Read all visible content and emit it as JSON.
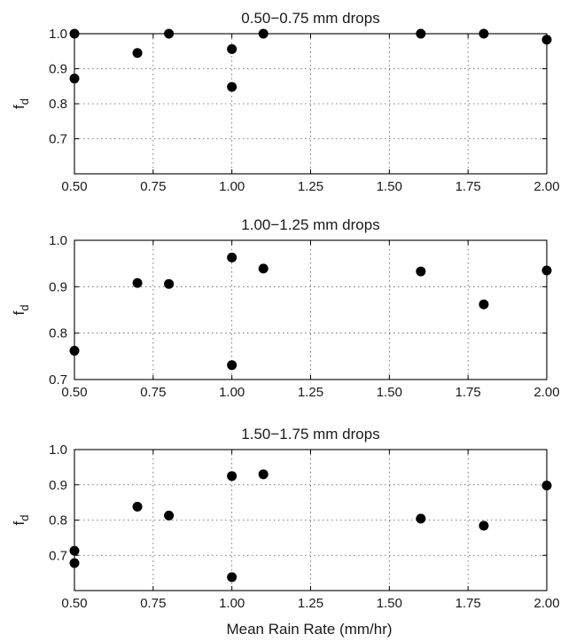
{
  "chart_data": [
    {
      "type": "scatter",
      "title": "0.50−0.75 mm drops",
      "ylabel": "f",
      "ylabel_sub": "d",
      "xlim": [
        0.5,
        2.0
      ],
      "ylim": [
        0.6,
        1.0
      ],
      "xticks": [
        0.5,
        0.75,
        1.0,
        1.25,
        1.5,
        1.75,
        2.0
      ],
      "xtick_labels": [
        "0.50",
        "0.75",
        "1.00",
        "1.25",
        "1.50",
        "1.75",
        "2.00"
      ],
      "yticks": [
        0.7,
        0.8,
        0.9,
        1.0
      ],
      "ytick_labels": [
        "0.7",
        "0.8",
        "0.9",
        "1.0"
      ],
      "grid": true,
      "points": [
        {
          "x": 0.5,
          "y": 1.0
        },
        {
          "x": 0.5,
          "y": 0.872
        },
        {
          "x": 0.7,
          "y": 0.945
        },
        {
          "x": 0.8,
          "y": 1.0
        },
        {
          "x": 1.0,
          "y": 0.956
        },
        {
          "x": 1.0,
          "y": 0.848
        },
        {
          "x": 1.1,
          "y": 1.0
        },
        {
          "x": 1.6,
          "y": 1.0
        },
        {
          "x": 1.8,
          "y": 1.0
        },
        {
          "x": 2.0,
          "y": 0.983
        }
      ]
    },
    {
      "type": "scatter",
      "title": "1.00−1.25 mm drops",
      "ylabel": "f",
      "ylabel_sub": "d",
      "xlim": [
        0.5,
        2.0
      ],
      "ylim": [
        0.7,
        1.0
      ],
      "xticks": [
        0.5,
        0.75,
        1.0,
        1.25,
        1.5,
        1.75,
        2.0
      ],
      "xtick_labels": [
        "0.50",
        "0.75",
        "1.00",
        "1.25",
        "1.50",
        "1.75",
        "2.00"
      ],
      "yticks": [
        0.7,
        0.8,
        0.9,
        1.0
      ],
      "ytick_labels": [
        "0.7",
        "0.8",
        "0.9",
        "1.0"
      ],
      "grid": true,
      "points": [
        {
          "x": 0.5,
          "y": 0.762
        },
        {
          "x": 0.7,
          "y": 0.908
        },
        {
          "x": 0.8,
          "y": 0.906
        },
        {
          "x": 1.0,
          "y": 0.963
        },
        {
          "x": 1.0,
          "y": 0.731
        },
        {
          "x": 1.1,
          "y": 0.939
        },
        {
          "x": 1.6,
          "y": 0.933
        },
        {
          "x": 1.8,
          "y": 0.862
        },
        {
          "x": 2.0,
          "y": 0.935
        }
      ]
    },
    {
      "type": "scatter",
      "title": "1.50−1.75 mm drops",
      "ylabel": "f",
      "ylabel_sub": "d",
      "xlabel": "Mean Rain Rate (mm/hr)",
      "xlim": [
        0.5,
        2.0
      ],
      "ylim": [
        0.6,
        1.0
      ],
      "xticks": [
        0.5,
        0.75,
        1.0,
        1.25,
        1.5,
        1.75,
        2.0
      ],
      "xtick_labels": [
        "0.50",
        "0.75",
        "1.00",
        "1.25",
        "1.50",
        "1.75",
        "2.00"
      ],
      "yticks": [
        0.7,
        0.8,
        0.9,
        1.0
      ],
      "ytick_labels": [
        "0.7",
        "0.8",
        "0.9",
        "1.0"
      ],
      "grid": true,
      "points": [
        {
          "x": 0.5,
          "y": 0.713
        },
        {
          "x": 0.5,
          "y": 0.678
        },
        {
          "x": 0.7,
          "y": 0.838
        },
        {
          "x": 0.8,
          "y": 0.813
        },
        {
          "x": 1.0,
          "y": 0.925
        },
        {
          "x": 1.0,
          "y": 0.638
        },
        {
          "x": 1.1,
          "y": 0.93
        },
        {
          "x": 1.6,
          "y": 0.804
        },
        {
          "x": 1.8,
          "y": 0.784
        },
        {
          "x": 2.0,
          "y": 0.898
        }
      ]
    }
  ]
}
